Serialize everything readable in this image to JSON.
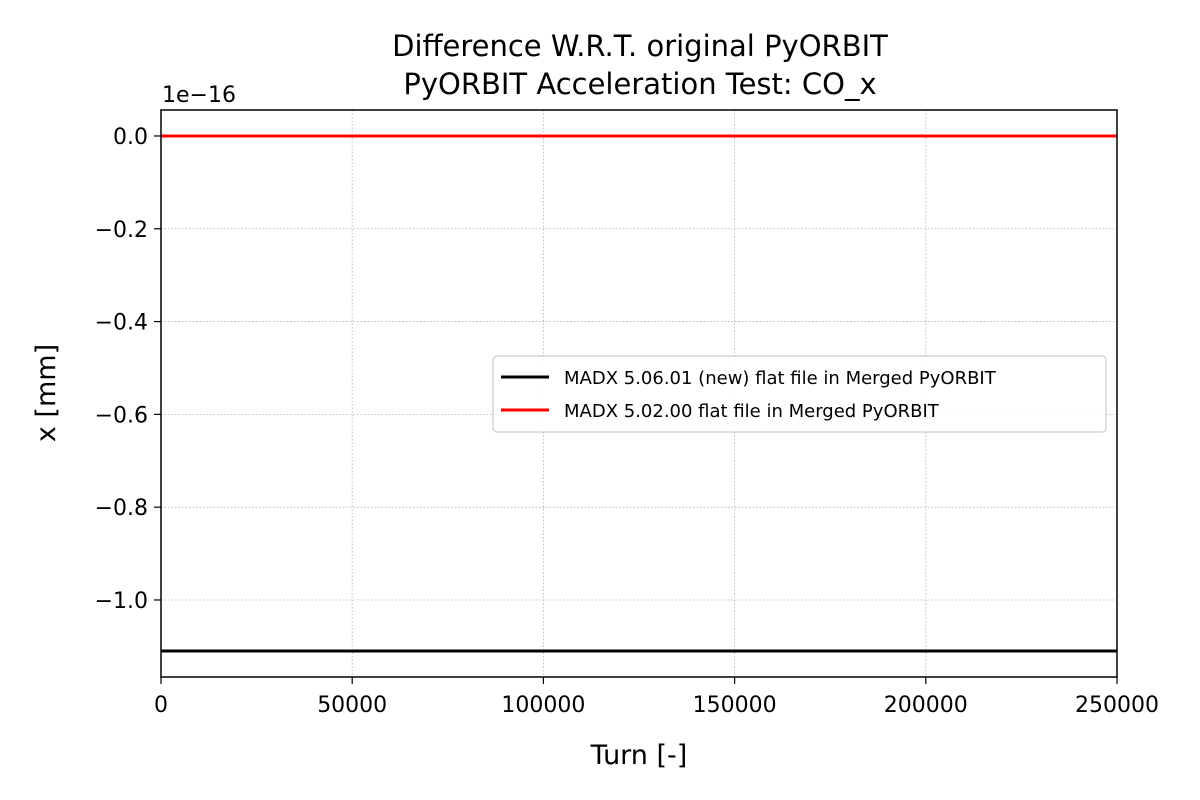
{
  "chart_data": {
    "type": "line",
    "title": "Difference W.R.T. original PyORBIT",
    "subtitle": "PyORBIT Acceleration Test: CO_x",
    "xlabel": "Turn [-]",
    "ylabel": "x [mm]",
    "y_offset_label": "1e−16",
    "xlim": [
      0,
      250000
    ],
    "ylim": [
      -1.166,
      0.056
    ],
    "x_ticks": [
      0,
      50000,
      100000,
      150000,
      200000,
      250000
    ],
    "x_tick_labels": [
      "0",
      "50000",
      "100000",
      "150000",
      "200000",
      "250000"
    ],
    "y_ticks": [
      0.0,
      -0.2,
      -0.4,
      -0.6,
      -0.8,
      -1.0
    ],
    "y_tick_labels": [
      "0.0",
      "−0.2",
      "−0.4",
      "−0.6",
      "−0.8",
      "−1.0"
    ],
    "grid": true,
    "legend_position": "center-right",
    "series": [
      {
        "name": "MADX 5.06.01 (new) flat file in Merged PyORBIT",
        "color": "#000000",
        "x": [
          0,
          250000
        ],
        "y": [
          -1.11,
          -1.11
        ]
      },
      {
        "name": "MADX 5.02.00 flat file in Merged PyORBIT",
        "color": "#ff0000",
        "x": [
          0,
          250000
        ],
        "y": [
          0.0,
          0.0
        ]
      }
    ]
  }
}
